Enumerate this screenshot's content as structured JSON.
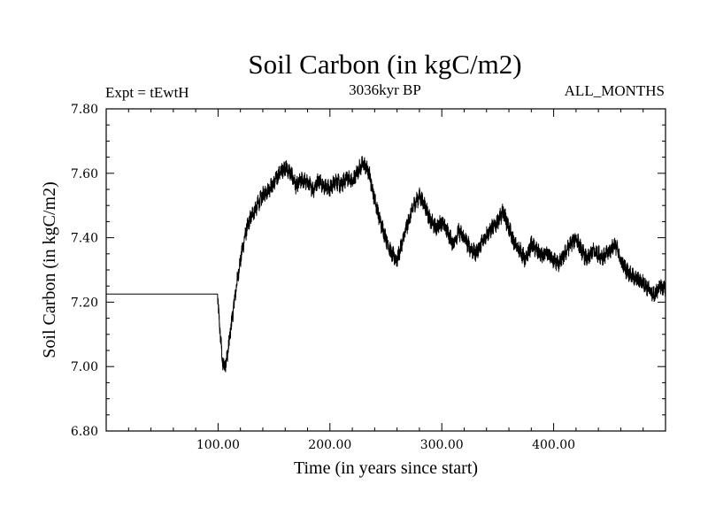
{
  "chart_data": {
    "type": "line",
    "title": "Soil Carbon (in kgC/m2)",
    "subtitle_left": "Expt = tEwtH",
    "subtitle_center": "3036kyr BP",
    "subtitle_right": "ALL_MONTHS",
    "xlabel": "Time (in years since start)",
    "ylabel": "Soil Carbon (in kgC/m2)",
    "xlim": [
      0,
      500
    ],
    "ylim": [
      6.8,
      7.8
    ],
    "x_ticks": [
      100,
      200,
      300,
      400
    ],
    "x_tick_labels": [
      "100.00",
      "200.00",
      "300.00",
      "400.00"
    ],
    "x_minor_step": 20,
    "y_ticks": [
      6.8,
      7.0,
      7.2,
      7.4,
      7.6,
      7.8
    ],
    "y_tick_labels": [
      "6.80",
      "7.00",
      "7.20",
      "7.40",
      "7.60",
      "7.80"
    ],
    "y_minor_step": 0.05,
    "grid": false,
    "line_color": "#000000",
    "noise_amplitude": 0.022,
    "series": [
      {
        "name": "Soil Carbon",
        "x": [
          0,
          99.5,
          100,
          102,
          104,
          106,
          108,
          110,
          113,
          116,
          119,
          122,
          125,
          130,
          135,
          140,
          145,
          150,
          155,
          160,
          165,
          170,
          175,
          180,
          185,
          190,
          195,
          200,
          205,
          210,
          215,
          220,
          225,
          230,
          235,
          240,
          245,
          250,
          255,
          260,
          265,
          270,
          275,
          280,
          285,
          290,
          295,
          300,
          305,
          310,
          315,
          320,
          325,
          330,
          335,
          340,
          345,
          350,
          355,
          360,
          365,
          370,
          375,
          380,
          385,
          390,
          395,
          400,
          405,
          410,
          415,
          420,
          425,
          430,
          435,
          440,
          445,
          450,
          455,
          460,
          465,
          470,
          475,
          480,
          485,
          490,
          495,
          500
        ],
        "y": [
          7.225,
          7.225,
          7.19,
          7.1,
          7.01,
          7.0,
          7.03,
          7.08,
          7.16,
          7.24,
          7.31,
          7.37,
          7.42,
          7.47,
          7.5,
          7.53,
          7.55,
          7.57,
          7.6,
          7.62,
          7.6,
          7.56,
          7.58,
          7.57,
          7.55,
          7.58,
          7.56,
          7.55,
          7.58,
          7.56,
          7.59,
          7.57,
          7.61,
          7.63,
          7.6,
          7.52,
          7.45,
          7.4,
          7.35,
          7.33,
          7.39,
          7.45,
          7.5,
          7.53,
          7.5,
          7.45,
          7.43,
          7.45,
          7.42,
          7.38,
          7.42,
          7.4,
          7.37,
          7.35,
          7.38,
          7.41,
          7.43,
          7.45,
          7.48,
          7.43,
          7.38,
          7.36,
          7.33,
          7.38,
          7.36,
          7.34,
          7.35,
          7.33,
          7.32,
          7.35,
          7.38,
          7.4,
          7.36,
          7.33,
          7.36,
          7.35,
          7.34,
          7.36,
          7.38,
          7.33,
          7.3,
          7.28,
          7.27,
          7.26,
          7.24,
          7.22,
          7.25,
          7.24
        ]
      }
    ]
  }
}
